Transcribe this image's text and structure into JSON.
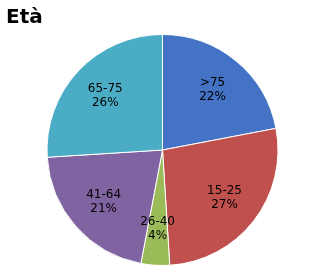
{
  "chart_data": {
    "type": "pie",
    "title": "Età",
    "categories": [
      ">75",
      "15-25",
      "26-40",
      "41-64",
      "65-75"
    ],
    "values": [
      22,
      27,
      4,
      21,
      26
    ],
    "value_labels": [
      "22%",
      "27%",
      "4%",
      "21%",
      "26%"
    ],
    "colors": [
      "#4472C4",
      "#C0504D",
      "#9BBB59",
      "#8064A2",
      "#4BACC6"
    ],
    "data_labels": true
  }
}
